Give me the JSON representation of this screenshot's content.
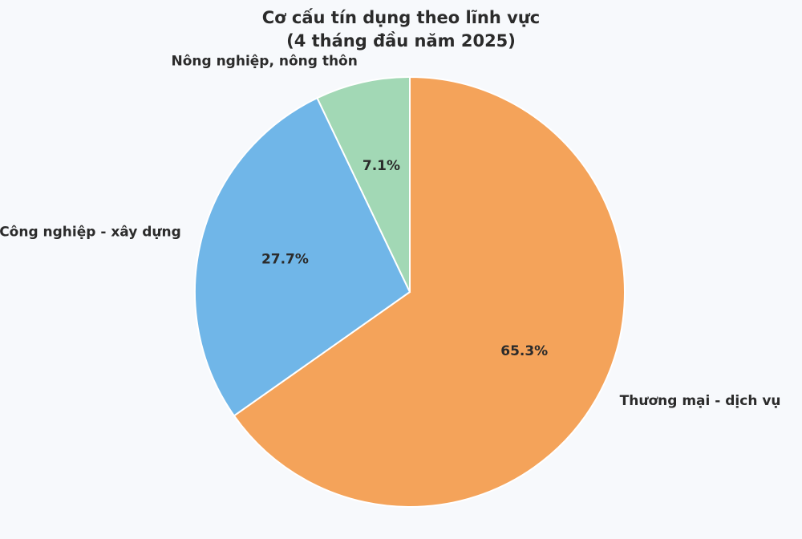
{
  "chart_data": {
    "type": "pie",
    "title_lines": [
      "Cơ cấu tín dụng theo lĩnh vực",
      "(4 tháng đầu năm 2025)"
    ],
    "start_angle_deg": 90,
    "direction": "clockwise",
    "legend": "none",
    "slices": [
      {
        "name": "Thương mại - dịch vụ",
        "value": 65.3,
        "label": "65.3%",
        "color": "#f4a35a"
      },
      {
        "name": "Công nghiệp - xây dựng",
        "value": 27.7,
        "label": "27.7%",
        "color": "#70b6e8"
      },
      {
        "name": "Nông nghiệp, nông thôn",
        "value": 7.1,
        "label": "7.1%",
        "color": "#a2d8b5"
      }
    ]
  }
}
